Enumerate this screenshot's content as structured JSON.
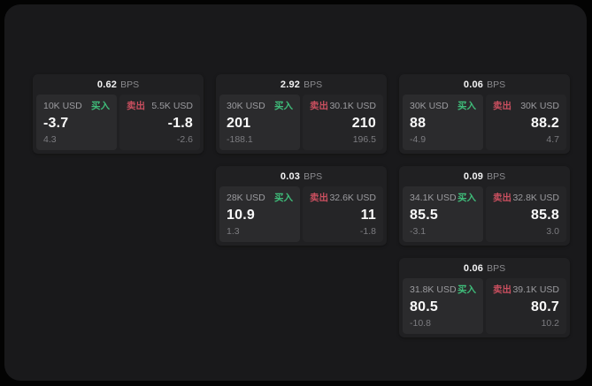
{
  "labels": {
    "bps_unit": "BPS",
    "buy": "买入",
    "sell": "卖出"
  },
  "colors": {
    "buy_accent": "#3fbd7a",
    "sell_accent": "#c94f5f",
    "panel_bg": "#19191b",
    "card_bg": "#202022"
  },
  "cards": [
    {
      "row": 1,
      "col": 1,
      "bps": "0.62",
      "buy": {
        "amount": "10K USD",
        "price": "-3.7",
        "delta": "4.3"
      },
      "sell": {
        "amount": "5.5K USD",
        "price": "-1.8",
        "delta": "-2.6"
      }
    },
    {
      "row": 1,
      "col": 2,
      "bps": "2.92",
      "buy": {
        "amount": "30K USD",
        "price": "201",
        "delta": "-188.1"
      },
      "sell": {
        "amount": "30.1K USD",
        "price": "210",
        "delta": "196.5"
      }
    },
    {
      "row": 1,
      "col": 3,
      "bps": "0.06",
      "buy": {
        "amount": "30K USD",
        "price": "88",
        "delta": "-4.9"
      },
      "sell": {
        "amount": "30K USD",
        "price": "88.2",
        "delta": "4.7"
      }
    },
    {
      "row": 2,
      "col": 2,
      "bps": "0.03",
      "buy": {
        "amount": "28K USD",
        "price": "10.9",
        "delta": "1.3"
      },
      "sell": {
        "amount": "32.6K USD",
        "price": "11",
        "delta": "-1.8"
      }
    },
    {
      "row": 2,
      "col": 3,
      "bps": "0.09",
      "buy": {
        "amount": "34.1K USD",
        "price": "85.5",
        "delta": "-3.1"
      },
      "sell": {
        "amount": "32.8K USD",
        "price": "85.8",
        "delta": "3.0"
      }
    },
    {
      "row": 3,
      "col": 3,
      "bps": "0.06",
      "buy": {
        "amount": "31.8K USD",
        "price": "80.5",
        "delta": "-10.8"
      },
      "sell": {
        "amount": "39.1K USD",
        "price": "80.7",
        "delta": "10.2"
      }
    }
  ]
}
